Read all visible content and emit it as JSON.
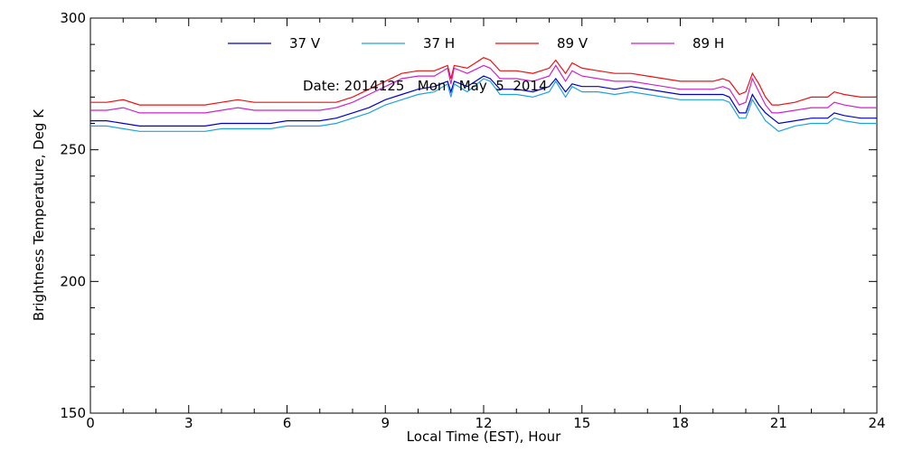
{
  "chart_data": {
    "type": "line",
    "title": "",
    "annotation": "Date: 2014125   Mon   May  5  2014",
    "xlabel": "Local Time (EST), Hour",
    "ylabel": "Brightness Temperature, Deg  K",
    "xlim": [
      0,
      24
    ],
    "ylim": [
      150,
      300
    ],
    "xticks": [
      0,
      3,
      6,
      9,
      12,
      15,
      18,
      21,
      24
    ],
    "yticks": [
      150,
      200,
      250,
      300
    ],
    "grid": false,
    "legend_position": "top",
    "series": [
      {
        "name": "37 V",
        "color": "#0000cc",
        "x": [
          0,
          0.5,
          1,
          1.5,
          2,
          2.5,
          3,
          3.5,
          4,
          4.5,
          5,
          5.5,
          6,
          6.5,
          7,
          7.5,
          8,
          8.5,
          9,
          9.5,
          10,
          10.5,
          10.9,
          11,
          11.1,
          11.5,
          12,
          12.2,
          12.5,
          13,
          13.5,
          14,
          14.2,
          14.5,
          14.7,
          15,
          15.5,
          16,
          16.5,
          17,
          17.5,
          18,
          18.5,
          19,
          19.3,
          19.5,
          19.8,
          20,
          20.2,
          20.4,
          20.6,
          20.8,
          21,
          21.5,
          22,
          22.5,
          22.7,
          23,
          23.5,
          24
        ],
        "y": [
          261,
          261,
          260,
          259,
          259,
          259,
          259,
          259,
          260,
          260,
          260,
          260,
          261,
          261,
          261,
          262,
          264,
          266,
          269,
          271,
          273,
          274,
          276,
          272,
          276,
          274,
          278,
          277,
          273,
          273,
          272,
          274,
          277,
          272,
          275,
          274,
          274,
          273,
          274,
          273,
          272,
          271,
          271,
          271,
          271,
          270,
          264,
          264,
          271,
          267,
          264,
          262,
          260,
          261,
          262,
          262,
          264,
          263,
          262,
          262
        ]
      },
      {
        "name": "37 H",
        "color": "#1fa3dd",
        "x": [
          0,
          0.5,
          1,
          1.5,
          2,
          2.5,
          3,
          3.5,
          4,
          4.5,
          5,
          5.5,
          6,
          6.5,
          7,
          7.5,
          8,
          8.5,
          9,
          9.5,
          10,
          10.5,
          10.9,
          11,
          11.1,
          11.5,
          12,
          12.2,
          12.5,
          13,
          13.5,
          14,
          14.2,
          14.5,
          14.7,
          15,
          15.5,
          16,
          16.5,
          17,
          17.5,
          18,
          18.5,
          19,
          19.3,
          19.5,
          19.8,
          20,
          20.2,
          20.4,
          20.6,
          20.8,
          21,
          21.5,
          22,
          22.5,
          22.7,
          23,
          23.5,
          24
        ],
        "y": [
          259,
          259,
          258,
          257,
          257,
          257,
          257,
          257,
          258,
          258,
          258,
          258,
          259,
          259,
          259,
          260,
          262,
          264,
          267,
          269,
          271,
          272,
          275,
          270,
          275,
          272,
          277,
          276,
          271,
          271,
          270,
          272,
          276,
          270,
          274,
          272,
          272,
          271,
          272,
          271,
          270,
          269,
          269,
          269,
          269,
          268,
          262,
          262,
          269,
          265,
          261,
          259,
          257,
          259,
          260,
          260,
          262,
          261,
          260,
          260
        ]
      },
      {
        "name": "89 V",
        "color": "#ee1111",
        "x": [
          0,
          0.5,
          1,
          1.5,
          2,
          2.5,
          3,
          3.5,
          4,
          4.5,
          5,
          5.5,
          6,
          6.5,
          7,
          7.5,
          8,
          8.5,
          9,
          9.5,
          10,
          10.5,
          10.9,
          11,
          11.1,
          11.5,
          12,
          12.2,
          12.5,
          13,
          13.5,
          14,
          14.2,
          14.5,
          14.7,
          15,
          15.5,
          16,
          16.5,
          17,
          17.5,
          18,
          18.5,
          19,
          19.3,
          19.5,
          19.8,
          20,
          20.2,
          20.4,
          20.6,
          20.8,
          21,
          21.5,
          22,
          22.5,
          22.7,
          23,
          23.5,
          24
        ],
        "y": [
          268,
          268,
          269,
          267,
          267,
          267,
          267,
          267,
          268,
          269,
          268,
          268,
          268,
          268,
          268,
          268,
          270,
          273,
          276,
          279,
          280,
          280,
          282,
          277,
          282,
          281,
          285,
          284,
          280,
          280,
          279,
          281,
          284,
          279,
          283,
          281,
          280,
          279,
          279,
          278,
          277,
          276,
          276,
          276,
          277,
          276,
          271,
          272,
          279,
          275,
          270,
          267,
          267,
          268,
          270,
          270,
          272,
          271,
          270,
          270
        ]
      },
      {
        "name": "89 H",
        "color": "#cc22cc",
        "x": [
          0,
          0.5,
          1,
          1.5,
          2,
          2.5,
          3,
          3.5,
          4,
          4.5,
          5,
          5.5,
          6,
          6.5,
          7,
          7.5,
          8,
          8.5,
          9,
          9.5,
          10,
          10.5,
          10.9,
          11,
          11.1,
          11.5,
          12,
          12.2,
          12.5,
          13,
          13.5,
          14,
          14.2,
          14.5,
          14.7,
          15,
          15.5,
          16,
          16.5,
          17,
          17.5,
          18,
          18.5,
          19,
          19.3,
          19.5,
          19.8,
          20,
          20.2,
          20.4,
          20.6,
          20.8,
          21,
          21.5,
          22,
          22.5,
          22.7,
          23,
          23.5,
          24
        ],
        "y": [
          265,
          265,
          266,
          264,
          264,
          264,
          264,
          264,
          265,
          266,
          265,
          265,
          265,
          265,
          265,
          266,
          268,
          271,
          274,
          277,
          278,
          278,
          281,
          275,
          281,
          279,
          282,
          281,
          277,
          277,
          276,
          278,
          282,
          276,
          280,
          278,
          277,
          276,
          276,
          275,
          274,
          273,
          273,
          273,
          274,
          273,
          267,
          268,
          277,
          272,
          267,
          264,
          264,
          265,
          266,
          266,
          268,
          267,
          266,
          266
        ]
      }
    ]
  }
}
